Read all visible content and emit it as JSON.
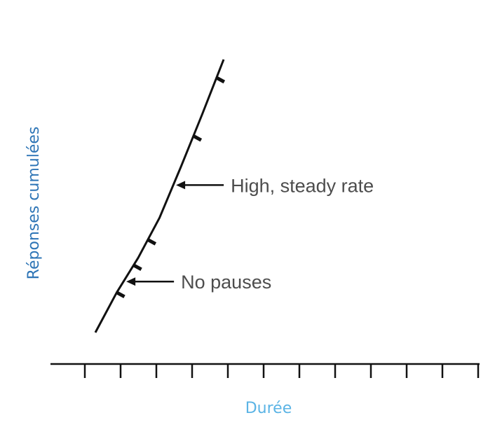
{
  "chart_data": {
    "type": "line",
    "title": "",
    "xlabel": "Durée",
    "ylabel": "Réponses cumulées",
    "x_ticks": 12,
    "grid": false,
    "legend": "none",
    "series": [
      {
        "x": [
          0,
          1,
          2,
          3,
          4,
          5,
          6
        ],
        "y": [
          0,
          2.2,
          4.1,
          6.3,
          9.1,
          12.0,
          15.0
        ]
      }
    ],
    "reinforcement_marks_at_y": [
      2.2,
      3.7,
      5.1,
      10.8,
      14.0
    ],
    "annotations": [
      {
        "text": "High, steady rate",
        "target_y": 8.1
      },
      {
        "text": "No pauses",
        "target_y": 2.8
      }
    ]
  },
  "colors": {
    "line": "#111111",
    "annotation_text": "#4d4d4d",
    "ylabel": "#2e75b6",
    "xlabel": "#5bb4e5"
  }
}
